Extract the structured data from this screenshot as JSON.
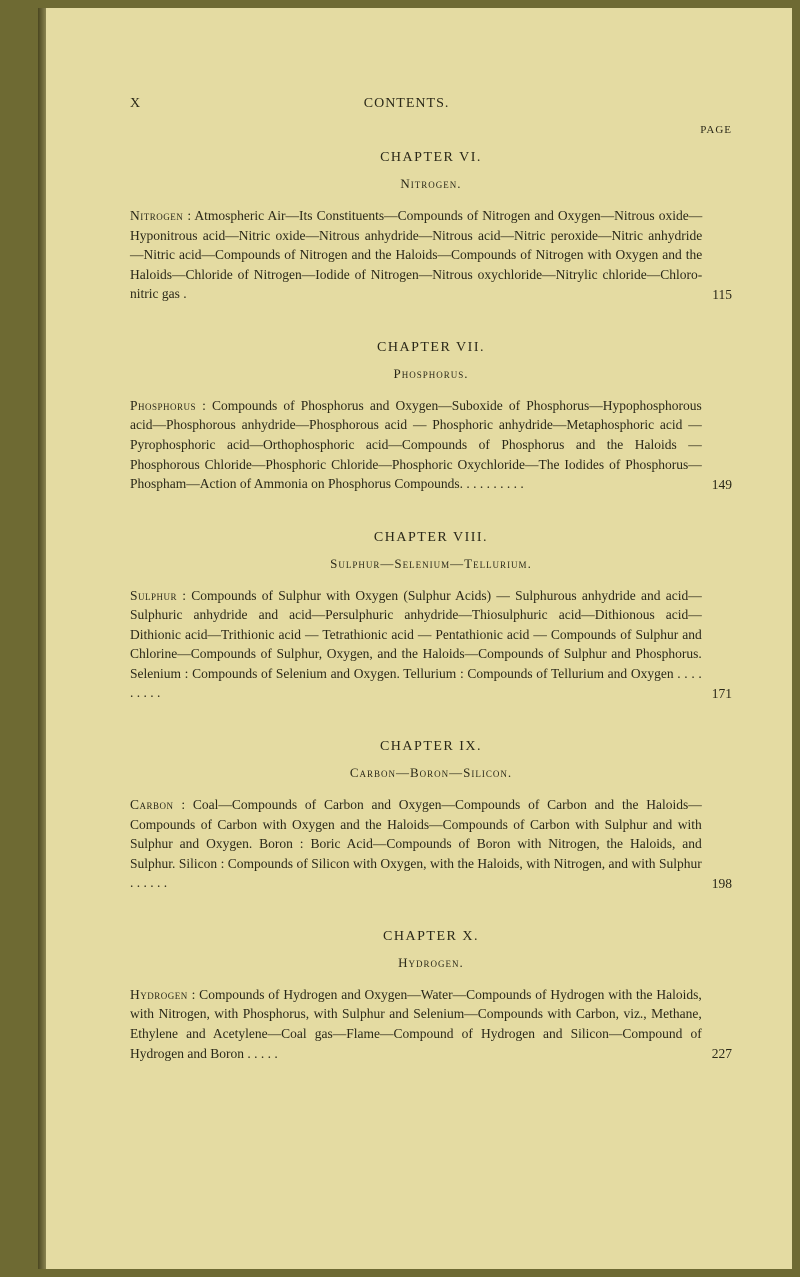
{
  "running": {
    "left": "X",
    "center": "CONTENTS."
  },
  "pageLabel": "PAGE",
  "chapters": [
    {
      "title": "CHAPTER VI.",
      "sub": "Nitrogen.",
      "lead": "Nitrogen",
      "body": " : Atmospheric Air—Its Constituents—Compounds of Nitrogen and Oxygen—Nitrous oxide—Hyponitrous acid—Nitric oxide—Nitrous anhydride—Nitrous acid—Nitric peroxide—Nitric anhydride—Nitric acid—Compounds of Nitrogen and the Haloids—Compounds of Nitrogen with Oxygen and the Haloids—Chloride of Nitrogen—Iodide of Nitrogen—Nitrous oxychloride—Nitrylic chloride—Chloro-nitric gas .",
      "page": "115"
    },
    {
      "title": "CHAPTER VII.",
      "sub": "Phosphorus.",
      "lead": "Phosphorus",
      "body": " : Compounds of Phosphorus and Oxygen—Suboxide of Phosphorus—Hypophosphorous acid—Phosphorous anhydride—Phosphorous acid — Phosphoric anhydride—Metaphosphoric acid — Pyrophosphoric acid—Orthophosphoric acid—Compounds of Phosphorus and the Haloids —Phosphorous Chloride—Phosphoric Chloride—Phosphoric Oxychloride—The Iodides of Phosphorus—Phospham—Action of Ammonia on Phosphorus Compounds. . . . . . . . . .",
      "page": "149"
    },
    {
      "title": "CHAPTER VIII.",
      "sub": "Sulphur—Selenium—Tellurium.",
      "lead": "Sulphur",
      "body": " : Compounds of Sulphur with Oxygen (Sulphur Acids) — Sulphurous anhydride and acid—Sulphuric anhydride and acid—Persulphuric anhydride—Thiosulphuric acid—Dithionous acid—Dithionic acid—Trithionic acid — Tetrathionic acid — Pentathionic acid — Compounds of Sulphur and Chlorine—Compounds of Sulphur, Oxygen, and the Haloids—Compounds of Sulphur and Phosphorus. Selenium : Compounds of Selenium and Oxygen. Tellurium : Compounds of Tellurium and Oxygen . . . . . . . . .",
      "page": "171"
    },
    {
      "title": "CHAPTER IX.",
      "sub": "Carbon—Boron—Silicon.",
      "lead": "Carbon",
      "body": " : Coal—Compounds of Carbon and Oxygen—Compounds of Carbon and the Haloids—Compounds of Carbon with Oxygen and the Haloids—Compounds of Carbon with Sulphur and with Sulphur and Oxygen. Boron : Boric Acid—Compounds of Boron with Nitrogen, the Haloids, and Sulphur. Silicon : Compounds of Silicon with Oxygen, with the Haloids, with Nitrogen, and with Sulphur . . . . . .",
      "page": "198"
    },
    {
      "title": "CHAPTER X.",
      "sub": "Hydrogen.",
      "lead": "Hydrogen",
      "body": " : Compounds of Hydrogen and Oxygen—Water—Compounds of Hydrogen with the Haloids, with Nitrogen, with Phosphorus, with Sulphur and Selenium—Compounds with Carbon, viz., Methane, Ethylene and Acetylene—Coal gas—Flame—Compound of Hydrogen and Silicon—Compound of Hydrogen and Boron . . . . .",
      "page": "227"
    }
  ]
}
